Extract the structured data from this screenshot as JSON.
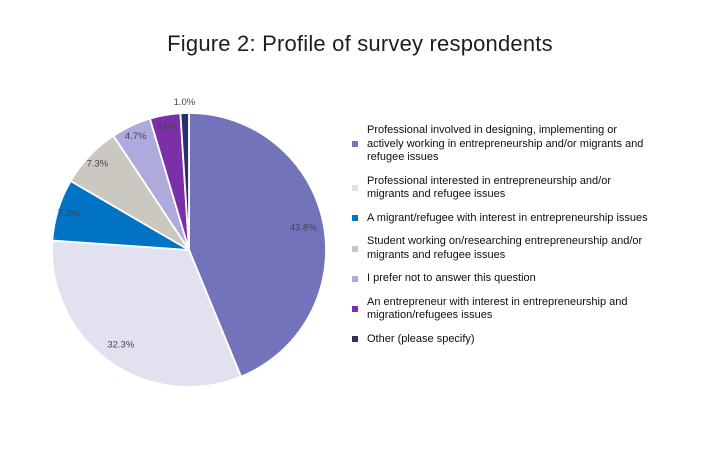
{
  "page": {
    "background": "#ffffff"
  },
  "title": "Figure 2: Profile of survey respondents",
  "chart_data": {
    "type": "pie",
    "title": "Figure 2: Profile of survey respondents",
    "start_angle_deg": 0,
    "direction": "clockwise",
    "legend_position": "right",
    "label_color": "#44444f",
    "slice_border_color": "#ffffff",
    "slices": [
      {
        "label": "Professional involved in designing, implementing or actively working in entrepreneurship and/or migrants and refugee issues",
        "value": 43.8,
        "display": "43.8%",
        "color": "#7273bb"
      },
      {
        "label": "Professional interested in entrepreneurship and/or migrants and refugee issues",
        "value": 32.3,
        "display": "32.3%",
        "color": "#e2e1f0"
      },
      {
        "label": "A migrant/refugee with interest in entrepreneurship issues",
        "value": 7.3,
        "display": "7.3%",
        "color": "#0073c5"
      },
      {
        "label": "Student working on/researching entrepreneurship and/or migrants and refugee issues",
        "value": 7.3,
        "display": "7.3%",
        "color": "#cbc8c2"
      },
      {
        "label": "I prefer not to answer this question",
        "value": 4.7,
        "display": "4.7%",
        "color": "#aeabdc"
      },
      {
        "label": "An entrepreneur with interest in entrepreneurship and migration/refugees issues",
        "value": 3.6,
        "display": "3.6%",
        "color": "#7b2fa9"
      },
      {
        "label": "Other (please specify)",
        "value": 1.0,
        "display": "1.0%",
        "color": "#2d2f68"
      }
    ]
  }
}
